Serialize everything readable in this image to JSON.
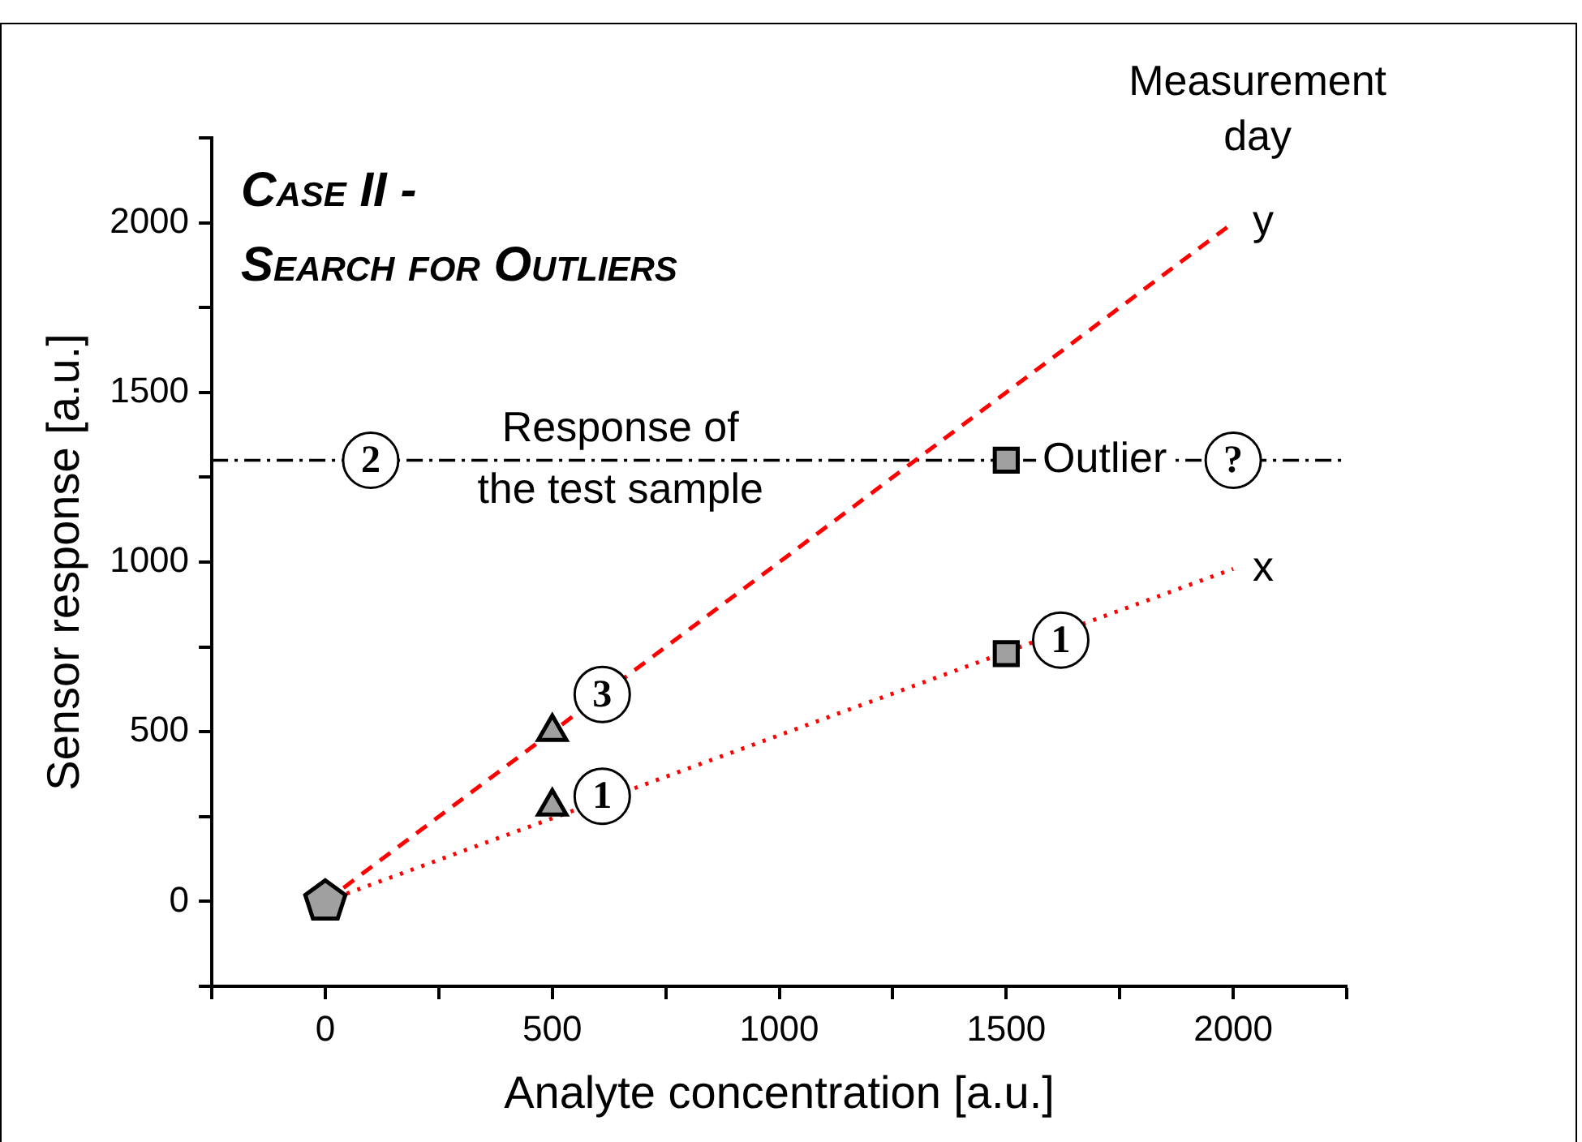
{
  "chart_data": {
    "type": "scatter",
    "title": "Case II -\nSearch for Outliers",
    "xlabel": "Analyte concentration [a.u.]",
    "ylabel": "Sensor response [a.u.]",
    "legend_title": "Measurement\nday",
    "xlim": [
      -250,
      2250
    ],
    "xticks": [
      {
        "value": -250,
        "label": null
      },
      0,
      {
        "value": 250,
        "label": null
      },
      500,
      {
        "value": 750,
        "label": null
      },
      1000,
      {
        "value": 1250,
        "label": null
      },
      1500,
      {
        "value": 1750,
        "label": null
      },
      2000,
      {
        "value": 2250,
        "label": null
      }
    ],
    "ylim": [
      -250,
      2250
    ],
    "yticks": [
      {
        "value": -250,
        "label": null
      },
      0,
      {
        "value": 250,
        "label": null
      },
      500,
      {
        "value": 750,
        "label": null
      },
      1000,
      {
        "value": 1250,
        "label": null
      },
      1500,
      {
        "value": 1750,
        "label": null
      },
      2000,
      {
        "value": 2250,
        "label": null
      }
    ],
    "grid": false,
    "legend": false,
    "series": [
      {
        "name": "y",
        "type": "line",
        "color": "#ff0000",
        "line_style": "dashed",
        "marker": "none",
        "x": [
          0,
          2000
        ],
        "values": [
          0,
          2000
        ]
      },
      {
        "name": "x",
        "type": "line",
        "color": "#ff0000",
        "line_style": "dotted",
        "marker": "none",
        "x": [
          0,
          2000
        ],
        "values": [
          0,
          980
        ]
      },
      {
        "type": "scatter",
        "color": "#a0a0a0",
        "x": [
          0
        ],
        "values": [
          0
        ]
      },
      {
        "type": "scatter",
        "color": "#a0a0a0",
        "marker": "triangle",
        "x": [
          500,
          500
        ],
        "values": [
          500,
          280
        ]
      },
      {
        "type": "scatter",
        "color": "#a0a0a0",
        "marker": "square",
        "x": [
          1500,
          1500
        ],
        "values": [
          1300,
          730
        ]
      }
    ],
    "ref_lines": [
      {
        "axis": "y",
        "value": 1300,
        "label": "Response of\nthe test sample",
        "color": "#000000",
        "line_style": "dashdot"
      }
    ],
    "annotations": [
      {
        "text": "2",
        "x": 100,
        "y": 1300
      },
      {
        "text": "3",
        "x": 610,
        "y": 610
      },
      {
        "text": "1",
        "x": 610,
        "y": 310
      },
      {
        "text": "1",
        "x": 1620,
        "y": 770
      },
      {
        "text": "Outlier",
        "x": 1580,
        "y": 1300
      },
      {
        "text": "?",
        "x": 2000,
        "y": 1300
      }
    ]
  }
}
